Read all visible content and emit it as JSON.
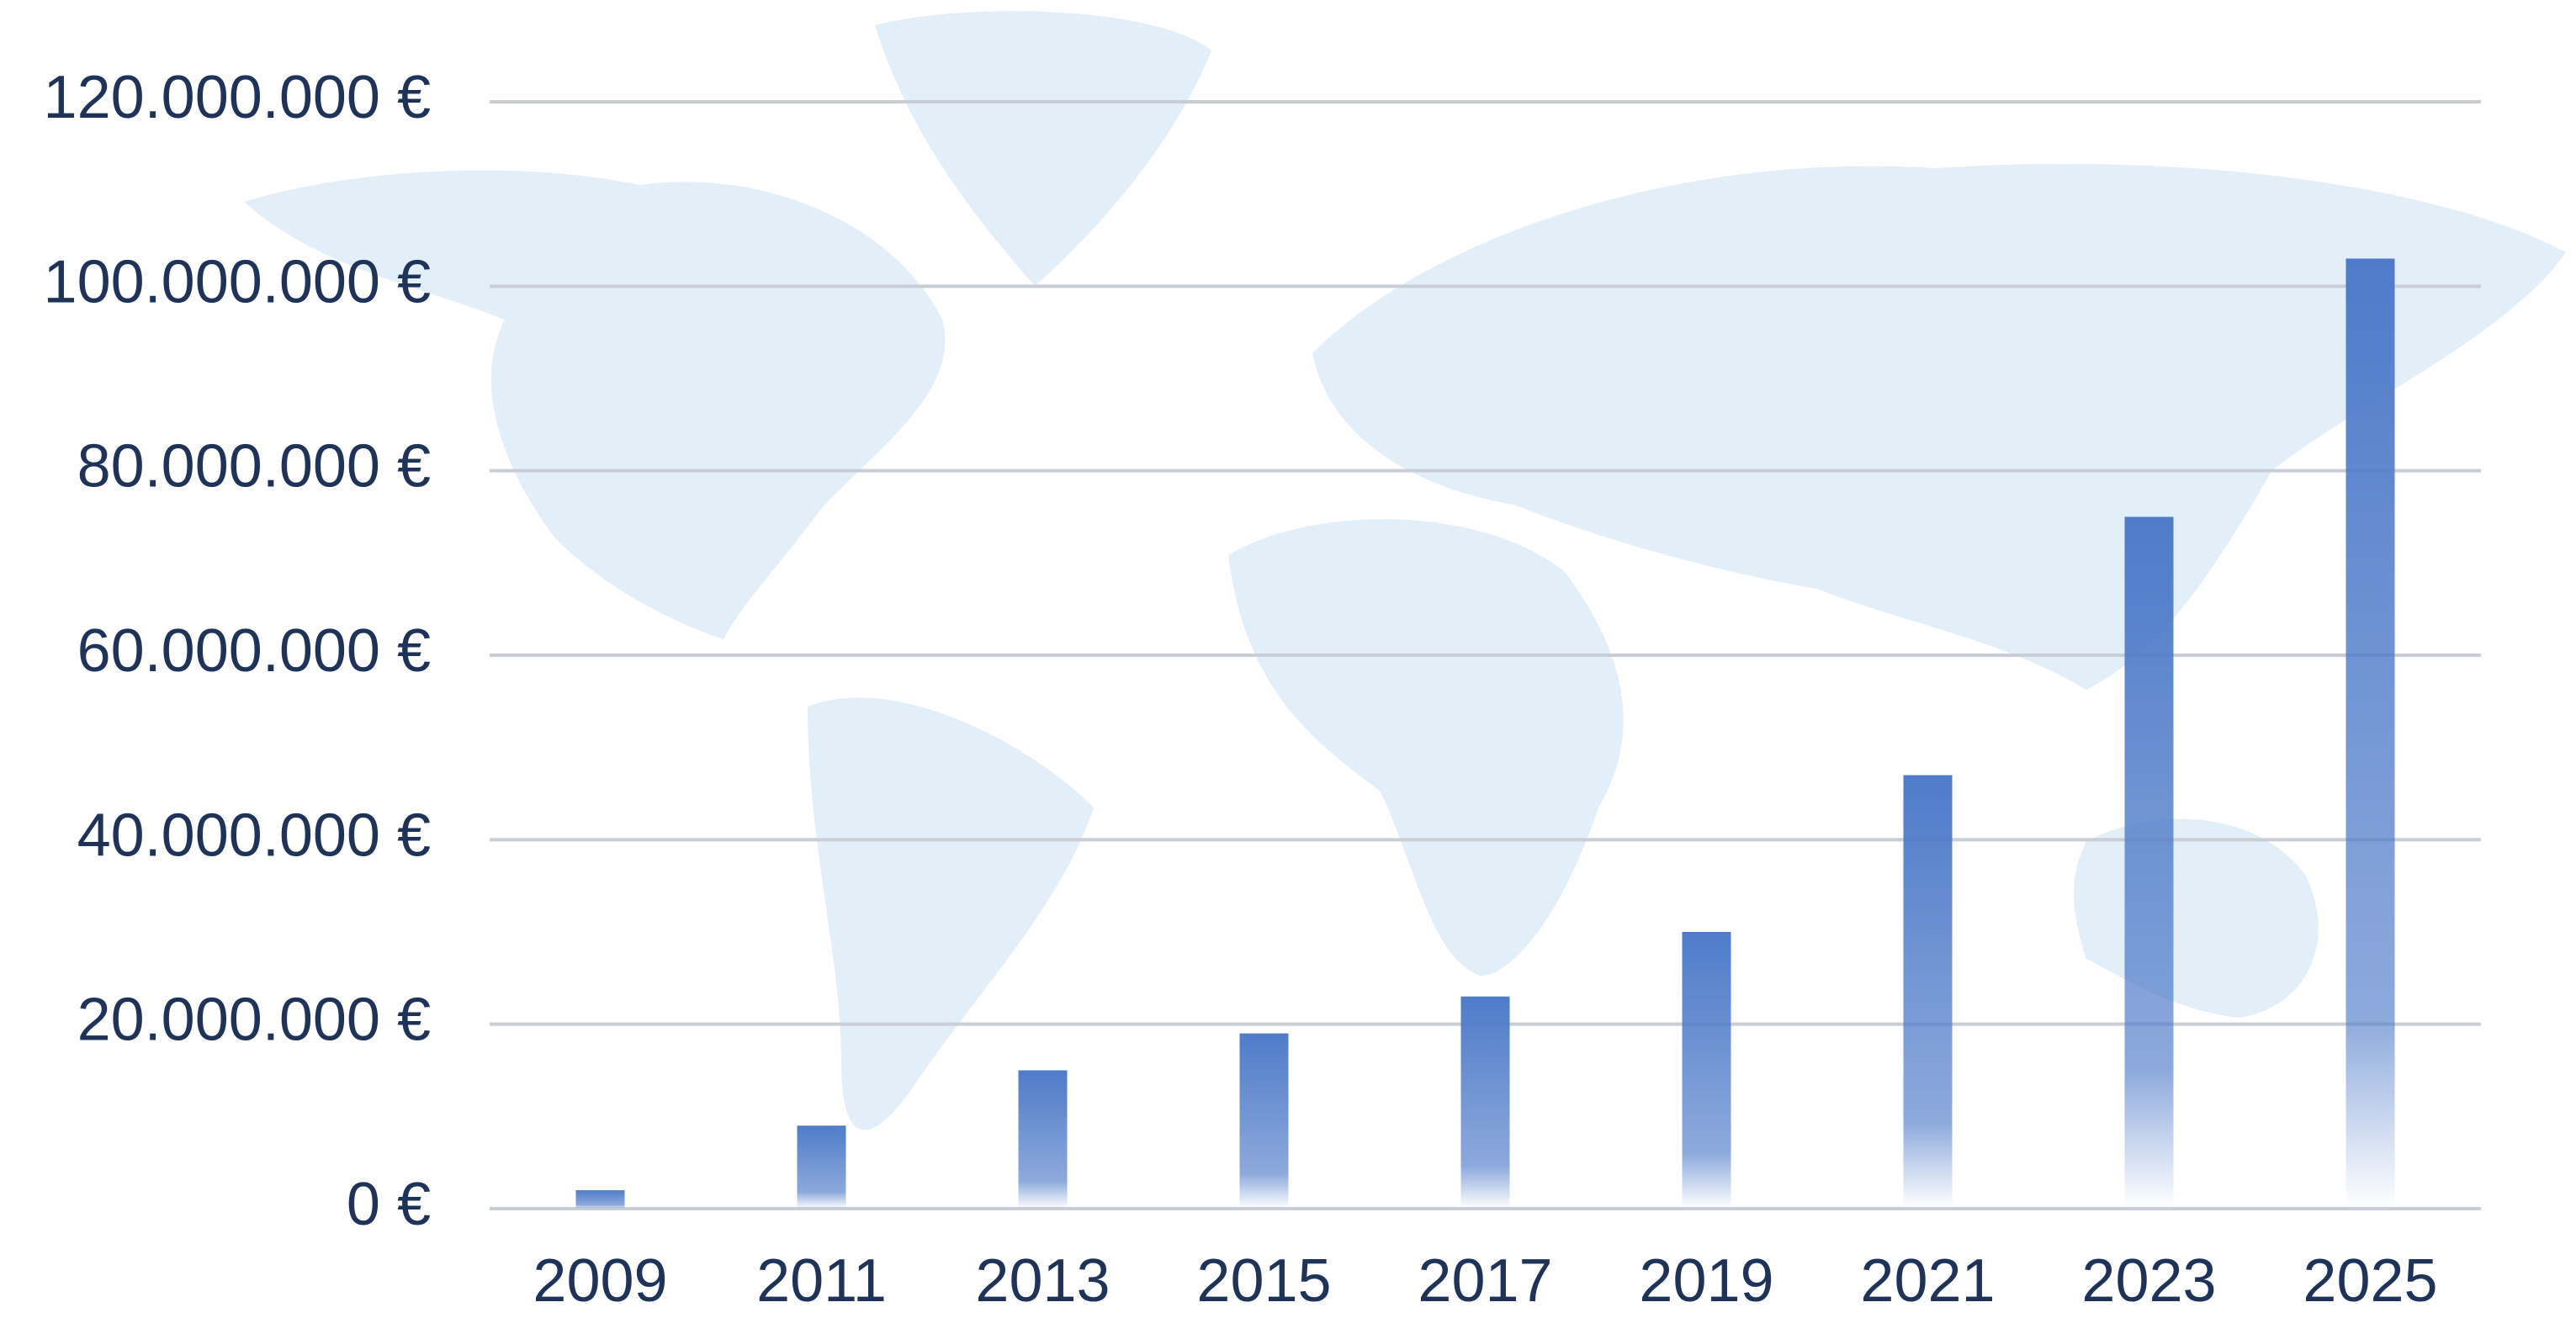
{
  "chart_data": {
    "type": "bar",
    "categories": [
      "2009",
      "2011",
      "2013",
      "2015",
      "2017",
      "2019",
      "2021",
      "2023",
      "2025"
    ],
    "values": [
      2000000,
      9000000,
      15000000,
      19000000,
      23000000,
      30000000,
      47000000,
      75000000,
      103000000
    ],
    "color": "#4f7bc9",
    "ylim": [
      0,
      120000000
    ],
    "yticks": [
      {
        "value": 0,
        "label": "0 €"
      },
      {
        "value": 20000000,
        "label": "20.000.000 €"
      },
      {
        "value": 40000000,
        "label": "40.000.000 €"
      },
      {
        "value": 60000000,
        "label": "60.000.000 €"
      },
      {
        "value": 80000000,
        "label": "80.000.000 €"
      },
      {
        "value": 100000000,
        "label": "100.000.000 €"
      },
      {
        "value": 120000000,
        "label": "120.000.000 €"
      }
    ],
    "grid": true
  }
}
